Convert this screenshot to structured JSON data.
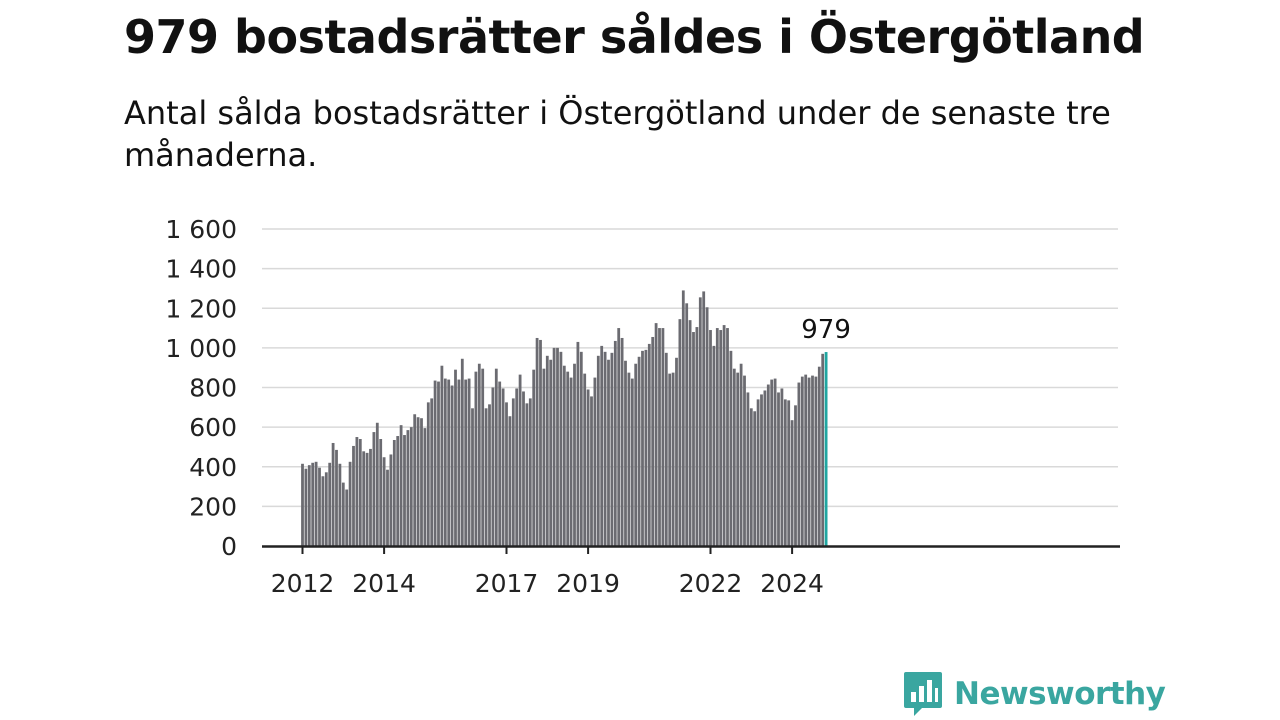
{
  "title": "979 bostadsrätter såldes i Östergötland",
  "subtitle": "Antal sålda bostadsrätter i Östergötland under de senaste tre månaderna.",
  "brand": {
    "name": "Newsworthy"
  },
  "colors": {
    "bar": "#6b6b71",
    "highlight": "#1fa6a1",
    "grid": "#d9d9d9",
    "axis": "#222222",
    "brand": "#3aa6a0"
  },
  "chart_data": {
    "type": "bar",
    "start": "2012-01",
    "ylim": [
      0,
      1600
    ],
    "yticks": [
      0,
      200,
      400,
      600,
      800,
      1000,
      1200,
      1400,
      1600
    ],
    "ytick_labels": [
      "0",
      "200",
      "400",
      "600",
      "800",
      "1 000",
      "1 200",
      "1 400",
      "1 600"
    ],
    "xticks": [
      {
        "label": "2012",
        "year": 2012
      },
      {
        "label": "2014",
        "year": 2014
      },
      {
        "label": "2017",
        "year": 2017
      },
      {
        "label": "2019",
        "year": 2019
      },
      {
        "label": "2022",
        "year": 2022
      },
      {
        "label": "2024",
        "year": 2024
      }
    ],
    "grid": true,
    "highlight_last": true,
    "last_label": "979",
    "values": [
      415,
      390,
      408,
      420,
      425,
      395,
      352,
      372,
      420,
      520,
      485,
      415,
      320,
      285,
      425,
      505,
      550,
      540,
      478,
      470,
      490,
      575,
      622,
      540,
      448,
      385,
      462,
      535,
      555,
      610,
      560,
      585,
      600,
      665,
      650,
      645,
      595,
      725,
      745,
      835,
      830,
      910,
      845,
      840,
      810,
      890,
      840,
      945,
      840,
      845,
      695,
      880,
      920,
      895,
      695,
      715,
      800,
      895,
      830,
      795,
      725,
      655,
      745,
      795,
      865,
      780,
      720,
      745,
      890,
      1050,
      1040,
      895,
      960,
      940,
      1000,
      1000,
      980,
      910,
      880,
      850,
      920,
      1030,
      980,
      870,
      790,
      755,
      850,
      960,
      1010,
      980,
      940,
      975,
      1035,
      1100,
      1050,
      935,
      875,
      845,
      920,
      955,
      985,
      990,
      1020,
      1055,
      1125,
      1100,
      1100,
      975,
      870,
      875,
      950,
      1145,
      1290,
      1225,
      1140,
      1080,
      1105,
      1255,
      1285,
      1205,
      1090,
      1010,
      1100,
      1090,
      1115,
      1100,
      985,
      895,
      875,
      920,
      860,
      775,
      695,
      680,
      740,
      765,
      785,
      815,
      840,
      845,
      775,
      795,
      740,
      735,
      635,
      710,
      825,
      855,
      865,
      850,
      860,
      855,
      905,
      970,
      979
    ]
  }
}
